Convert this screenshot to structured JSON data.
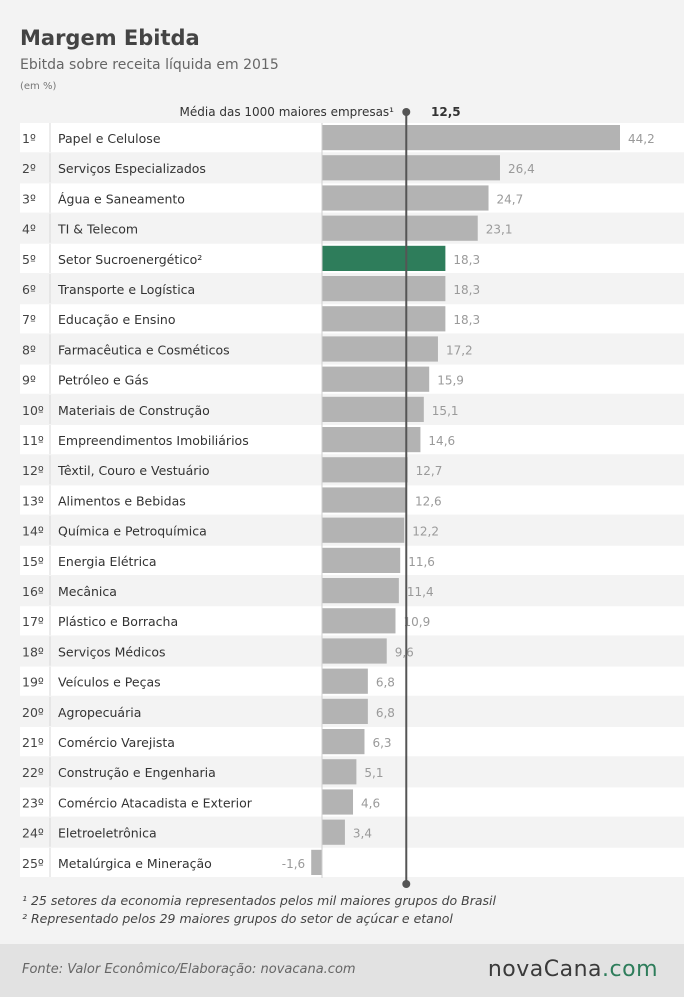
{
  "header": {
    "title": "Margem Ebitda",
    "subtitle": "Ebitda sobre receita líquida em 2015",
    "unit": "(em %)"
  },
  "average": {
    "label": "Média das 1000 maiores empresas¹",
    "value": "12,5"
  },
  "notes": [
    "¹ 25 setores da economia representados pelos mil maiores grupos do Brasil",
    "² Representado pelos 29 maiores grupos do setor de açúcar  e etanol"
  ],
  "footer": {
    "source": "Fonte:  Valor  Econômico/Elaboração: novacana.com",
    "brand_main": "novaCana",
    "brand_suffix": ".com"
  },
  "colors": {
    "bar": "#b3b3b3",
    "highlight": "#2e7d5b",
    "average_line": "#555555"
  },
  "chart_data": {
    "type": "bar",
    "orientation": "horizontal",
    "title": "Margem Ebitda",
    "subtitle": "Ebitda sobre receita líquida em 2015",
    "ylabel": "(em %)",
    "reference_line": {
      "label": "Média das 1000 maiores empresas¹",
      "value": 12.5
    },
    "highlight": "Setor Sucroenergético²",
    "ranks": [
      "1º",
      "2º",
      "3º",
      "4º",
      "5º",
      "6º",
      "7º",
      "8º",
      "9º",
      "10º",
      "11º",
      "12º",
      "13º",
      "14º",
      "15º",
      "16º",
      "17º",
      "18º",
      "19º",
      "20º",
      "21º",
      "22º",
      "23º",
      "24º",
      "25º"
    ],
    "categories": [
      "Papel e Celulose",
      "Serviços Especializados",
      "Água e Saneamento",
      "TI & Telecom",
      "Setor Sucroenergético²",
      "Transporte e Logística",
      "Educação e Ensino",
      "Farmacêutica e Cosméticos",
      "Petróleo e Gás",
      "Materiais de Construção",
      "Empreendimentos Imobiliários",
      "Têxtil, Couro e Vestuário",
      "Alimentos e Bebidas",
      "Química e Petroquímica",
      "Energia Elétrica",
      "Mecânica",
      "Plástico e Borracha",
      "Serviços Médicos",
      "Veículos e Peças",
      "Agropecuária",
      "Comércio Varejista",
      "Construção e Engenharia",
      "Comércio Atacadista e Exterior",
      "Eletroeletrônica",
      "Metalúrgica e Mineração"
    ],
    "values": [
      44.2,
      26.4,
      24.7,
      23.1,
      18.3,
      18.3,
      18.3,
      17.2,
      15.9,
      15.1,
      14.6,
      12.7,
      12.6,
      12.2,
      11.6,
      11.4,
      10.9,
      9.6,
      6.8,
      6.8,
      6.3,
      5.1,
      4.6,
      3.4,
      -1.6
    ],
    "value_labels": [
      "44,2",
      "26,4",
      "24,7",
      "23,1",
      "18,3",
      "18,3",
      "18,3",
      "17,2",
      "15,9",
      "15,1",
      "14,6",
      "12,7",
      "12,6",
      "12,2",
      "11,6",
      "11,4",
      "10,9",
      "9,6",
      "6,8",
      "6,8",
      "6,3",
      "5,1",
      "4,6",
      "3,4",
      "-1,6"
    ]
  }
}
